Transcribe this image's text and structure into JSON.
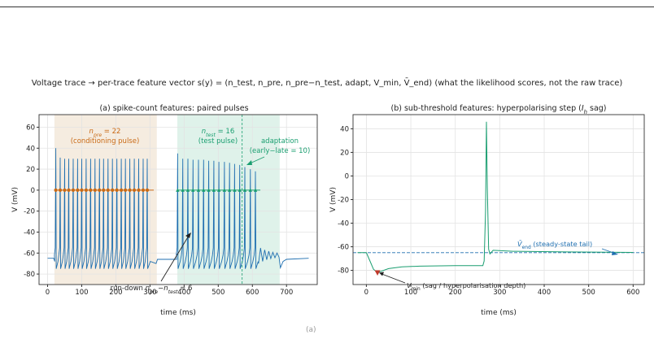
{
  "figure": {
    "caption": "Voltage trace → per-trace feature vector s(y) = (n_test, n_pre, n_pre−n_test, adapt, V_min, V̄_end)  (what the likelihood scores, not the raw trace)",
    "footer_mark": "(a)"
  },
  "chart_data": [
    {
      "type": "line",
      "title": "(a) spike-count features: paired pulses",
      "xlabel": "time (ms)",
      "ylabel": "V (mV)",
      "xlim": [
        -25,
        790
      ],
      "ylim": [
        -90,
        72
      ],
      "xticks": [
        0,
        100,
        200,
        300,
        400,
        500,
        600,
        700
      ],
      "yticks": [
        -80,
        -60,
        -40,
        -20,
        0,
        20,
        40,
        60
      ],
      "grid": true,
      "pulses": [
        {
          "name": "conditioning",
          "start": 20,
          "end": 320,
          "color": "#f5ece0"
        },
        {
          "name": "test",
          "start": 380,
          "end": 680,
          "color": "#dff2ea"
        }
      ],
      "rest_potential": -65,
      "spike_peak_first": 40,
      "spike_peak": 30,
      "spike_trough": -75,
      "pre_spike_times": [
        24,
        37,
        50,
        62,
        75,
        88,
        100,
        113,
        126,
        139,
        152,
        164,
        177,
        190,
        203,
        216,
        228,
        241,
        254,
        267,
        280,
        292
      ],
      "test_spike_times": [
        381,
        396,
        411,
        426,
        442,
        457,
        472,
        487,
        502,
        518,
        533,
        548,
        563,
        578,
        594,
        609
      ],
      "spike_peaks_pre": [
        40,
        31,
        30,
        30,
        30,
        30,
        30,
        30,
        30,
        30,
        30,
        30,
        30,
        30,
        30,
        30,
        30,
        30,
        30,
        30,
        30,
        30
      ],
      "spike_peaks_test": [
        35,
        30,
        30,
        29,
        29,
        29,
        28,
        28,
        27,
        27,
        26,
        25,
        24,
        22,
        20,
        18
      ],
      "adaptation_marker_time": 570,
      "markers": {
        "pre_color": "#c96a16",
        "test_color": "#1a9e70",
        "y": 0
      },
      "line_color": "#1f6fb0",
      "annotations": {
        "n_pre": {
          "sym": "n",
          "sub": "pre",
          "value": " = 22",
          "note": "(conditioning pulse)"
        },
        "n_test": {
          "sym": "n",
          "sub": "test",
          "value": " = 16",
          "note": "(test pulse)"
        },
        "adaptation": {
          "line1": "adaptation",
          "line2": "(early−late = 10)"
        },
        "rundown": {
          "pre": "run-down ",
          "sym1": "n",
          "sub1": "pre",
          "mid": "−",
          "sym2": "n",
          "sub2": "test",
          "value": " = 6"
        }
      }
    },
    {
      "type": "line",
      "title": "(b) sub-threshold features: hyperpolarising step (I_h sag)",
      "title_parts": {
        "main": "(b) sub-threshold features: hyperpolarising step (",
        "sym": "I",
        "sub": "h",
        "tail": " sag)"
      },
      "xlabel": "time (ms)",
      "ylabel": "V (mV)",
      "xlim": [
        -30,
        625
      ],
      "ylim": [
        -92,
        52
      ],
      "xticks": [
        0,
        100,
        200,
        300,
        400,
        500,
        600
      ],
      "yticks": [
        -80,
        -60,
        -40,
        -20,
        0,
        20,
        40
      ],
      "grid": true,
      "rest_potential": -65,
      "v_min": -82,
      "v_min_time": 25,
      "plateau": -76,
      "spike_time": 270,
      "spike_peak": 46,
      "v_end": -65,
      "line_color": "#1a9e70",
      "ref_line_color": "#1f6fb0",
      "vmin_marker_color": "#c0392b",
      "annotations": {
        "vmin": {
          "sym": "V",
          "sub": "min",
          "note": " (sag / hyperpolarisation depth)"
        },
        "vend": {
          "sym": "V̄",
          "sub": "end",
          "note": " (steady-state tail)"
        }
      }
    }
  ]
}
